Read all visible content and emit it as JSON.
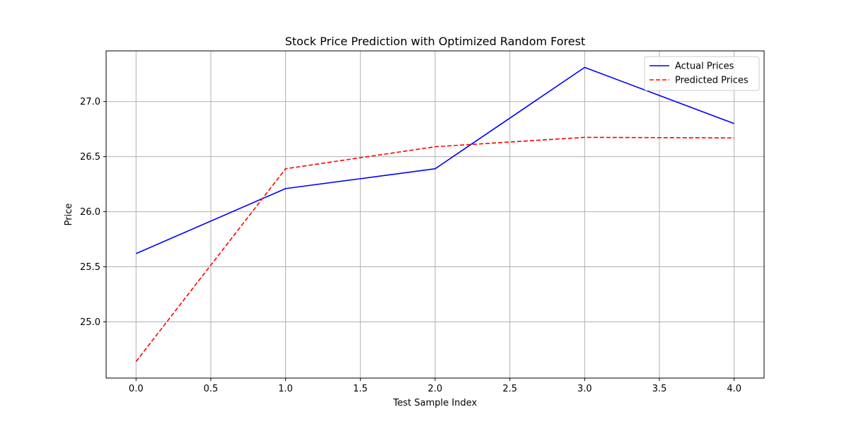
{
  "chart_data": {
    "type": "line",
    "title": "Stock Price Prediction with Optimized Random Forest",
    "xlabel": "Test Sample Index",
    "ylabel": "Price",
    "xlim": [
      -0.2,
      4.2
    ],
    "ylim": [
      24.49,
      27.46
    ],
    "x_ticks": [
      0.0,
      0.5,
      1.0,
      1.5,
      2.0,
      2.5,
      3.0,
      3.5,
      4.0
    ],
    "x_tick_labels": [
      "0.0",
      "0.5",
      "1.0",
      "1.5",
      "2.0",
      "2.5",
      "3.0",
      "3.5",
      "4.0"
    ],
    "y_ticks": [
      25.0,
      25.5,
      26.0,
      26.5,
      27.0
    ],
    "y_tick_labels": [
      "25.0",
      "25.5",
      "26.0",
      "26.5",
      "27.0"
    ],
    "grid": true,
    "legend_position": "top-right",
    "x": [
      0,
      1,
      2,
      3,
      4
    ],
    "series": [
      {
        "name": "Actual Prices",
        "values": [
          25.62,
          26.21,
          26.39,
          27.31,
          26.8
        ],
        "color": "#0000ff",
        "line_style": "solid"
      },
      {
        "name": "Predicted Prices",
        "values": [
          24.64,
          26.39,
          26.59,
          26.675,
          26.67
        ],
        "color": "#ff0000",
        "line_style": "dashed"
      }
    ]
  }
}
